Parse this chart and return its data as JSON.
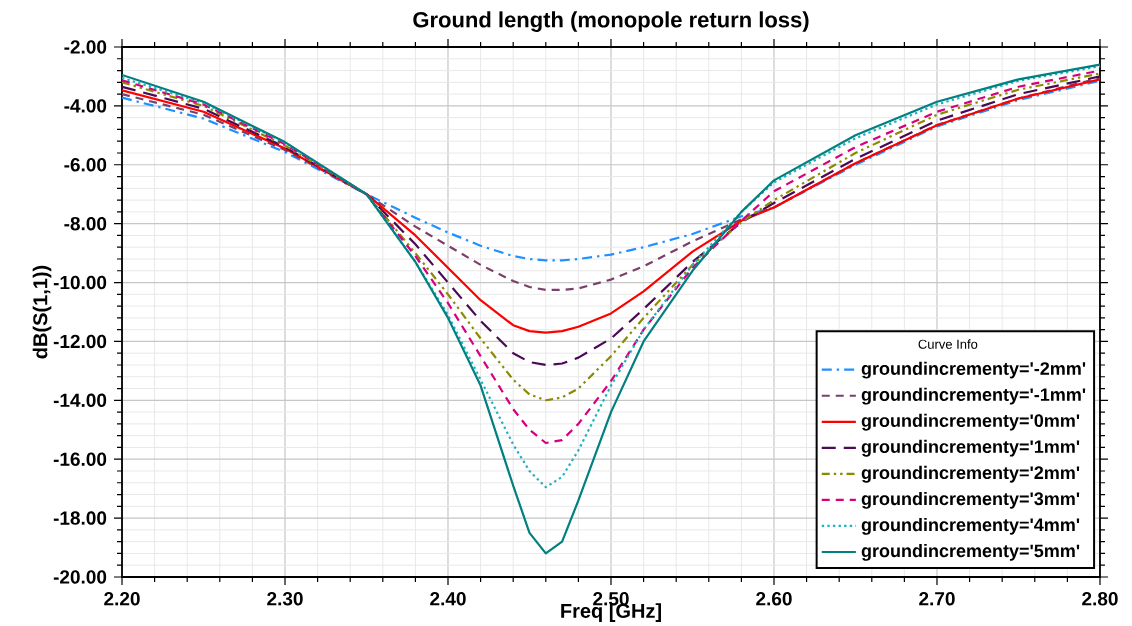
{
  "chart_data": {
    "type": "line",
    "title": "Ground length (monopole return loss)",
    "xlabel": "Freq [GHz]",
    "ylabel": "dB(S(1,1))",
    "legend_title": "Curve Info",
    "x": [
      2.2,
      2.25,
      2.3,
      2.35,
      2.38,
      2.4,
      2.42,
      2.44,
      2.45,
      2.46,
      2.47,
      2.48,
      2.5,
      2.52,
      2.55,
      2.58,
      2.6,
      2.65,
      2.7,
      2.75,
      2.8
    ],
    "series": [
      {
        "name": "groundincrementy='-2mm'",
        "color": "#1e90ff",
        "line_style": "dashdotted",
        "values": [
          -3.72,
          -4.43,
          -5.57,
          -7.0,
          -7.8,
          -8.3,
          -8.75,
          -9.1,
          -9.2,
          -9.25,
          -9.25,
          -9.2,
          -9.05,
          -8.8,
          -8.35,
          -7.75,
          -7.45,
          -6.0,
          -4.7,
          -3.8,
          -3.15
        ]
      },
      {
        "name": "groundincrementy='-1mm'",
        "color": "#7b3f6a",
        "line_style": "dashed",
        "values": [
          -3.6,
          -4.3,
          -5.5,
          -7.0,
          -8.1,
          -8.75,
          -9.4,
          -9.95,
          -10.15,
          -10.25,
          -10.25,
          -10.2,
          -9.9,
          -9.45,
          -8.6,
          -7.85,
          -7.45,
          -5.95,
          -4.65,
          -3.75,
          -3.05
        ]
      },
      {
        "name": "groundincrementy='0mm'",
        "color": "#ff0000",
        "line_style": "solid",
        "values": [
          -3.47,
          -4.2,
          -5.45,
          -7.0,
          -8.4,
          -9.5,
          -10.6,
          -11.45,
          -11.65,
          -11.7,
          -11.65,
          -11.5,
          -11.05,
          -10.3,
          -8.95,
          -7.9,
          -7.45,
          -5.95,
          -4.66,
          -3.75,
          -3.1
        ]
      },
      {
        "name": "groundincrementy='1mm'",
        "color": "#4b0a55",
        "line_style": "longdashed",
        "values": [
          -3.35,
          -4.1,
          -5.4,
          -7.0,
          -8.7,
          -10.0,
          -11.3,
          -12.4,
          -12.7,
          -12.8,
          -12.75,
          -12.55,
          -11.9,
          -10.9,
          -9.3,
          -7.95,
          -7.3,
          -5.8,
          -4.5,
          -3.6,
          -3.0
        ]
      },
      {
        "name": "groundincrementy='2mm'",
        "color": "#8b8b00",
        "line_style": "dashdotdotted",
        "values": [
          -3.2,
          -4.0,
          -5.35,
          -7.0,
          -9.0,
          -10.4,
          -11.9,
          -13.3,
          -13.8,
          -14.0,
          -13.9,
          -13.6,
          -12.5,
          -11.2,
          -9.4,
          -7.95,
          -7.2,
          -5.6,
          -4.3,
          -3.45,
          -2.9
        ]
      },
      {
        "name": "groundincrementy='3mm'",
        "color": "#d6007f",
        "line_style": "dashed",
        "values": [
          -3.13,
          -3.95,
          -5.3,
          -7.0,
          -9.1,
          -10.7,
          -12.5,
          -14.3,
          -15.0,
          -15.45,
          -15.35,
          -14.8,
          -13.35,
          -11.6,
          -9.5,
          -7.9,
          -6.9,
          -5.4,
          -4.2,
          -3.35,
          -2.8
        ]
      },
      {
        "name": "groundincrementy='4mm'",
        "color": "#20b2c0",
        "line_style": "dotted",
        "values": [
          -3.05,
          -3.9,
          -5.25,
          -7.0,
          -9.3,
          -11.1,
          -13.3,
          -15.5,
          -16.4,
          -16.95,
          -16.6,
          -15.7,
          -13.5,
          -11.6,
          -9.4,
          -7.6,
          -6.6,
          -5.1,
          -3.95,
          -3.15,
          -2.65
        ]
      },
      {
        "name": "groundincrementy='5mm'",
        "color": "#008080",
        "line_style": "solid",
        "values": [
          -2.95,
          -3.86,
          -5.23,
          -7.0,
          -9.3,
          -11.2,
          -13.5,
          -16.9,
          -18.5,
          -19.2,
          -18.8,
          -17.4,
          -14.4,
          -12.0,
          -9.6,
          -7.6,
          -6.53,
          -5.0,
          -3.86,
          -3.1,
          -2.6
        ]
      }
    ],
    "xlim": [
      2.2,
      2.8
    ],
    "xticks": [
      {
        "value": 2.2,
        "label": "2.20"
      },
      {
        "value": 2.3,
        "label": "2.30"
      },
      {
        "value": 2.4,
        "label": "2.40"
      },
      {
        "value": 2.5,
        "label": "2.50"
      },
      {
        "value": 2.6,
        "label": "2.60"
      },
      {
        "value": 2.7,
        "label": "2.70"
      },
      {
        "value": 2.8,
        "label": "2.80"
      }
    ],
    "ylim": [
      -20,
      -2
    ],
    "yticks": [
      {
        "value": -20,
        "label": "-20.00"
      },
      {
        "value": -18,
        "label": "-18.00"
      },
      {
        "value": -16,
        "label": "-16.00"
      },
      {
        "value": -14,
        "label": "-14.00"
      },
      {
        "value": -12,
        "label": "-12.00"
      },
      {
        "value": -10,
        "label": "-10.00"
      },
      {
        "value": -8,
        "label": "-8.00"
      },
      {
        "value": -6,
        "label": "-6.00"
      },
      {
        "value": -4,
        "label": "-4.00"
      },
      {
        "value": -2,
        "label": "-2.00"
      }
    ],
    "grid": true,
    "legend": "bottom right",
    "marker": "none"
  }
}
